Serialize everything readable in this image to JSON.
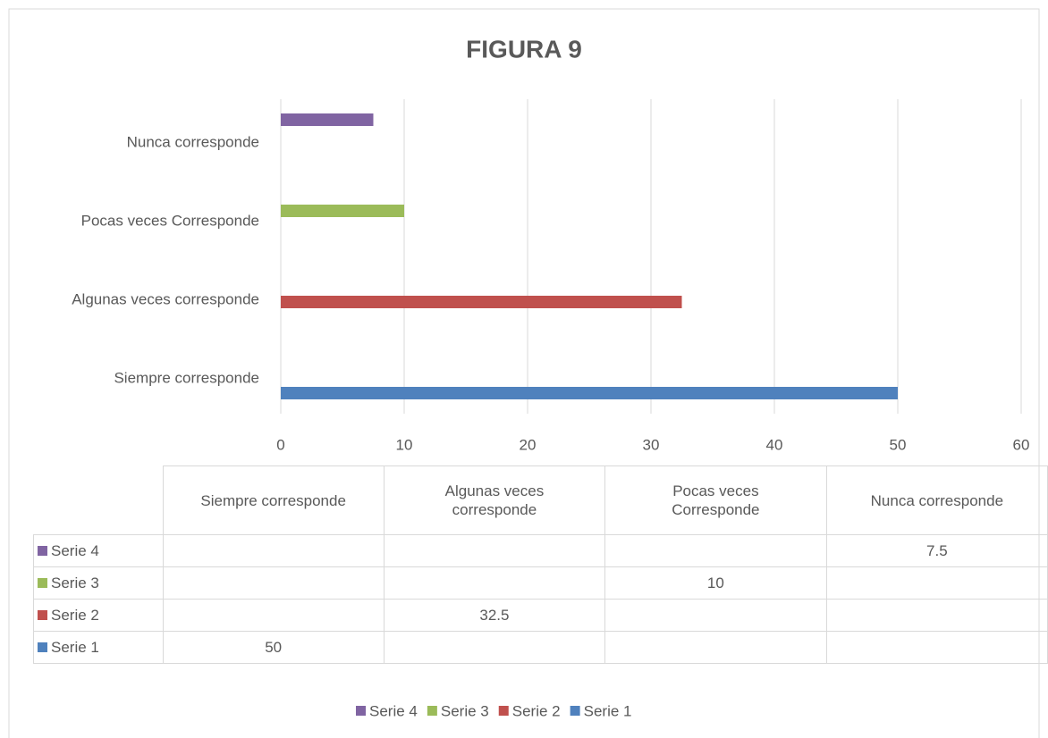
{
  "chart_data": {
    "type": "barh",
    "title": "FIGURA 9",
    "categories": [
      "Siempre corresponde",
      "Algunas veces corresponde",
      "Pocas veces Corresponde",
      "Nunca corresponde"
    ],
    "series": [
      {
        "name": "Serie 1",
        "color": "#4f81bd",
        "values": [
          50,
          null,
          null,
          null
        ]
      },
      {
        "name": "Serie 2",
        "color": "#c0504d",
        "values": [
          null,
          32.5,
          null,
          null
        ]
      },
      {
        "name": "Serie 3",
        "color": "#9bbb59",
        "values": [
          null,
          null,
          10,
          null
        ]
      },
      {
        "name": "Serie 4",
        "color": "#8064a2",
        "values": [
          null,
          null,
          null,
          7.5
        ]
      }
    ],
    "xlim": [
      0,
      60
    ],
    "xticks": [
      0,
      10,
      20,
      30,
      40,
      50,
      60
    ],
    "grid": true,
    "legend": "bottom"
  }
}
